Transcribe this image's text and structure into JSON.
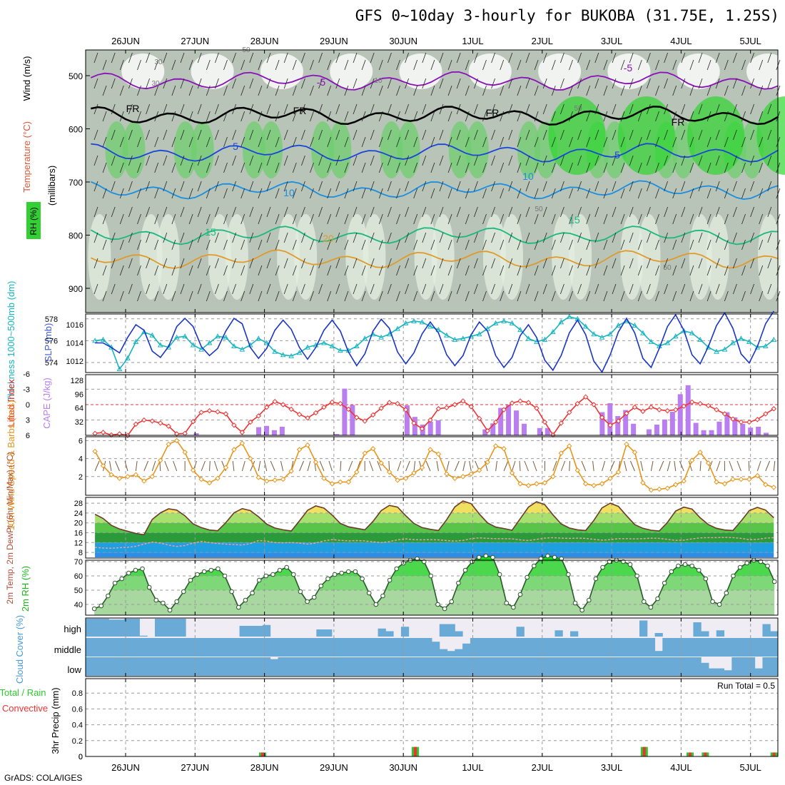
{
  "title": "GFS 0~10day 3-hourly for BUKOBA (31.75E, 1.25S)",
  "footer": "GrADS: COLA/IGES",
  "chart_data": [
    {
      "type": "time-height",
      "dates": [
        "26JUN",
        "27JUN",
        "28JUN",
        "29JUN",
        "30JUN",
        "1JUL",
        "2JUL",
        "3JUL",
        "4JUL",
        "5JUL"
      ],
      "ylabel_lines": [
        "Wind (m/s)",
        "Temperature (°C)",
        "RH (%)",
        "(millibars)"
      ],
      "yticks": [
        500,
        600,
        700,
        800,
        900
      ],
      "isotherm_labels": [
        "-5",
        "-5",
        "FR",
        "FR",
        "FR",
        "FR",
        "5",
        "5",
        "10",
        "10",
        "15",
        "15",
        "20",
        "30",
        "30",
        "50",
        "50",
        "50",
        "50",
        "10"
      ],
      "isotherms_c": [
        -5,
        0,
        5,
        10,
        15,
        20
      ],
      "isotherm_mean_hpa": [
        510,
        575,
        645,
        715,
        800,
        845
      ],
      "rh_bands_pct": [
        30,
        50,
        70,
        90,
        100
      ]
    },
    {
      "type": "line",
      "ylabel_left": "Thickness 1000~500mb (dm)",
      "ylabel_right": "SLP (mb)",
      "y_left_ticks": [
        574,
        576,
        578
      ],
      "y_right_ticks": [
        1012,
        1014,
        1016
      ],
      "series": [
        {
          "name": "SLP (mb)",
          "axis": "right",
          "color": "#1a35c8",
          "values": [
            1014.0,
            1014.0,
            1013.5,
            1012.9,
            1014.6,
            1016.0,
            1015.4,
            1013.1,
            1012.4,
            1013.6,
            1015.8,
            1016.7,
            1015.8,
            1013.6,
            1012.6,
            1013.4,
            1015.3,
            1016.7,
            1016.1,
            1013.5,
            1012.3,
            1013.4,
            1015.4,
            1016.5,
            1015.5,
            1013.5,
            1012.2,
            1013.5,
            1015.4,
            1016.5,
            1015.3,
            1013.0,
            1011.5,
            1012.8,
            1015.3,
            1016.6,
            1015.6,
            1013.0,
            1011.7,
            1012.9,
            1015.0,
            1016.3,
            1015.1,
            1012.7,
            1011.5,
            1012.6,
            1014.9,
            1016.3,
            1015.3,
            1012.6,
            1011.3,
            1012.4,
            1014.8,
            1016.0,
            1014.6,
            1012.1,
            1011.0,
            1012.6,
            1015.1,
            1016.5,
            1014.9,
            1012.0,
            1010.8,
            1012.7,
            1015.2,
            1016.7,
            1015.1,
            1012.3,
            1011.3,
            1013.4,
            1015.8,
            1017.1,
            1015.4,
            1012.7,
            1011.7,
            1013.6,
            1015.9,
            1017.3,
            1015.6,
            1012.8,
            1011.8,
            1013.6,
            1016.1,
            1017.5
          ]
        },
        {
          "name": "Thickness (dm)",
          "axis": "left",
          "color": "#17b5c0",
          "values": [
            576.0,
            576.1,
            575.4,
            573.4,
            574.4,
            575.9,
            576.8,
            576.5,
            575.6,
            575.4,
            576.3,
            576.4,
            575.6,
            575.2,
            575.8,
            576.4,
            576.3,
            575.5,
            575.2,
            575.6,
            576.2,
            575.8,
            575.0,
            574.7,
            574.6,
            574.9,
            575.4,
            575.6,
            575.8,
            575.5,
            575.1,
            575.1,
            575.5,
            576.2,
            576.6,
            576.3,
            576.6,
            577.1,
            577.6,
            577.8,
            577.7,
            577.3,
            577.0,
            576.5,
            576.1,
            576.2,
            576.4,
            576.6,
            577.1,
            577.6,
            577.8,
            577.6,
            577.0,
            576.2,
            575.9,
            576.1,
            576.8,
            577.7,
            578.2,
            578.0,
            577.3,
            576.6,
            576.3,
            576.6,
            577.4,
            577.8,
            577.4,
            576.7,
            575.9,
            575.5,
            575.8,
            576.4,
            576.9,
            576.7,
            576.1,
            575.4,
            575.0,
            575.2,
            575.8,
            576.2,
            575.9,
            575.4,
            575.5,
            576.1
          ]
        }
      ]
    },
    {
      "type": "bar+line",
      "ylabel_left": "Lifted Index",
      "ylabel_right": "CAPE (J/kg)",
      "y_left_ticks": [
        -6,
        -3,
        0,
        3,
        6
      ],
      "y_right_ticks": [
        32,
        64,
        96,
        128
      ],
      "li_values": [
        5.6,
        5.4,
        5.9,
        5.7,
        6.0,
        3.8,
        3.0,
        3.2,
        3.6,
        4.2,
        5.7,
        5.6,
        3.3,
        1.5,
        1.2,
        1.4,
        1.8,
        4.0,
        5.4,
        3.4,
        2.2,
        0.5,
        -0.6,
        0.0,
        0.9,
        1.9,
        2.6,
        1.6,
        0.5,
        -0.5,
        -0.2,
        0.9,
        2.5,
        3.2,
        2.0,
        0.7,
        -0.4,
        -0.2,
        1.0,
        3.6,
        4.7,
        3.0,
        0.8,
        0.6,
        0.0,
        -0.7,
        0.4,
        2.7,
        5.1,
        3.4,
        1.0,
        -0.3,
        -0.7,
        -0.4,
        0.7,
        3.4,
        5.9,
        3.6,
        1.5,
        -0.2,
        -1.5,
        0.0,
        2.5,
        4.0,
        3.2,
        1.7,
        0.5,
        1.3,
        0.5,
        1.0,
        1.2,
        1.0,
        0.3,
        -0.5,
        -0.2,
        0.2,
        1.0,
        1.8,
        2.8,
        3.4,
        3.4,
        2.9,
        1.8,
        0.8
      ],
      "cape_values": [
        0,
        0,
        0,
        0,
        0,
        0,
        0,
        0,
        0,
        0,
        0,
        0,
        0,
        5,
        0,
        0,
        0,
        0,
        0,
        0,
        0,
        19,
        22,
        12,
        20,
        0,
        0,
        0,
        0,
        0,
        0,
        3,
        109,
        71,
        0,
        0,
        0,
        0,
        0,
        0,
        70,
        43,
        25,
        32,
        35,
        0,
        0,
        0,
        0,
        0,
        14,
        28,
        64,
        71,
        58,
        27,
        0,
        17,
        17,
        0,
        0,
        0,
        0,
        0,
        0,
        54,
        75,
        45,
        59,
        27,
        0,
        14,
        25,
        37,
        55,
        96,
        117,
        29,
        12,
        12,
        32,
        54,
        42,
        27,
        18,
        20,
        6,
        0
      ]
    },
    {
      "type": "line",
      "ylabel": "10m Wind Speed & Barbs (m/s)",
      "yticks": [
        2,
        4,
        6
      ],
      "values": [
        4.8,
        3.2,
        2.2,
        1.8,
        2.0,
        2.2,
        1.5,
        2.0,
        3.8,
        5.6,
        6.0,
        4.7,
        2.7,
        1.7,
        1.3,
        1.8,
        3.0,
        5.0,
        5.7,
        4.0,
        1.9,
        1.5,
        1.6,
        1.7,
        2.6,
        5.0,
        5.5,
        3.6,
        1.8,
        1.2,
        1.4,
        1.4,
        2.5,
        4.6,
        5.1,
        3.5,
        2.5,
        1.6,
        1.8,
        2.4,
        3.0,
        5.0,
        4.5,
        2.3,
        1.8,
        2.0,
        2.3,
        2.7,
        3.6,
        5.4,
        5.1,
        2.4,
        1.2,
        1.0,
        1.2,
        1.3,
        2.0,
        4.6,
        5.4,
        2.7,
        1.2,
        1.0,
        1.2,
        1.8,
        2.5,
        5.6,
        4.7,
        1.3,
        0.5,
        0.6,
        0.7,
        1.1,
        1.5,
        3.8,
        4.7,
        3.5,
        1.4,
        1.2,
        1.7,
        1.7,
        1.7,
        2.1,
        1.1,
        0.8
      ]
    },
    {
      "type": "area",
      "ylabel": "2m Temp, 2m DewPt (6hr Min/Max) (°C)",
      "yticks": [
        8,
        12,
        16,
        20,
        24,
        28
      ],
      "temp": [
        23.5,
        21.8,
        19.0,
        17.5,
        16.6,
        15.7,
        15.2,
        21.4,
        24.1,
        25.7,
        25.2,
        22.9,
        19.6,
        18.1,
        17.1,
        16.8,
        20.1,
        24.1,
        25.8,
        25.0,
        22.5,
        19.5,
        17.9,
        17.2,
        16.7,
        20.8,
        25.1,
        26.9,
        26.0,
        23.2,
        19.8,
        18.4,
        17.8,
        17.2,
        20.6,
        25.0,
        27.1,
        26.4,
        22.9,
        19.8,
        18.1,
        17.4,
        16.9,
        21.3,
        26.5,
        28.9,
        27.8,
        23.6,
        20.0,
        18.3,
        17.7,
        17.0,
        21.7,
        26.4,
        28.6,
        27.4,
        23.3,
        19.6,
        17.9,
        17.2,
        16.9,
        21.0,
        26.1,
        28.0,
        26.7,
        22.9,
        19.3,
        17.8,
        17.0,
        16.7,
        20.2,
        24.8,
        26.4,
        25.6,
        22.1,
        19.3,
        17.8,
        17.1,
        16.9,
        20.7,
        25.0,
        26.3,
        25.2,
        22.1
      ],
      "dewpt": [
        10.0,
        9.8,
        9.7,
        9.9,
        10.1,
        10.5,
        11.4,
        12.2,
        11.8,
        11.0,
        10.4,
        10.8,
        11.8,
        12.5,
        12.0,
        11.6,
        11.4,
        11.2,
        11.0,
        11.6,
        12.8,
        12.6,
        12.0,
        11.9,
        12.0,
        11.8,
        11.4,
        11.8,
        12.7,
        13.2,
        12.9,
        12.7,
        12.8,
        12.7,
        12.3,
        12.0,
        12.4,
        13.1,
        13.5,
        13.2,
        13.1,
        13.2,
        13.1,
        12.8,
        12.6,
        12.9,
        13.6,
        13.9,
        13.7,
        13.6,
        13.6,
        13.5,
        13.1,
        12.8,
        13.3,
        13.8,
        14.0,
        13.8,
        13.7,
        13.8,
        13.7,
        13.3,
        13.0,
        13.2,
        13.6,
        13.6,
        13.5,
        13.6,
        13.8,
        13.7,
        13.3,
        12.9,
        13.0,
        13.5,
        13.9,
        14.0,
        14.0,
        14.1,
        14.0,
        13.7,
        13.2,
        13.3,
        13.8,
        14.0
      ]
    },
    {
      "type": "area",
      "ylabel": "2m RH (%)",
      "yticks": [
        40,
        50,
        60,
        70
      ],
      "values": [
        37,
        39,
        46,
        55,
        58,
        62,
        64,
        65,
        52,
        43,
        41,
        36,
        42,
        49,
        57,
        61,
        63,
        64,
        65,
        60,
        49,
        38,
        43,
        48,
        57,
        60,
        61,
        64,
        66,
        61,
        49,
        42,
        45,
        53,
        58,
        61,
        62,
        63,
        63,
        58,
        48,
        40,
        46,
        57,
        65,
        69,
        71,
        72,
        70,
        60,
        40,
        37,
        42,
        55,
        64,
        70,
        73,
        74,
        73,
        61,
        41,
        38,
        47,
        59,
        67,
        72,
        74,
        73,
        72,
        61,
        41,
        36,
        43,
        58,
        66,
        70,
        71,
        70,
        68,
        60,
        42,
        38,
        44,
        55,
        63,
        67,
        68,
        67,
        64,
        58,
        42,
        40,
        48,
        60,
        66,
        69,
        71,
        70,
        67,
        56
      ]
    },
    {
      "type": "heatmap",
      "ylabel": "Cloud Cover (%)",
      "levels": [
        "high",
        "middle",
        "low"
      ],
      "high_pct": [
        100,
        100,
        100,
        95,
        95,
        100,
        100,
        5,
        0,
        100,
        100,
        100,
        100,
        0,
        0,
        0,
        0,
        0,
        0,
        0,
        60,
        60,
        60,
        65,
        0,
        0,
        0,
        0,
        0,
        0,
        40,
        40,
        0,
        0,
        0,
        0,
        0,
        0,
        45,
        30,
        0,
        55,
        0,
        0,
        0,
        0,
        70,
        70,
        30,
        0,
        0,
        0,
        0,
        0,
        0,
        0,
        55,
        0,
        0,
        0,
        0,
        35,
        0,
        30,
        0,
        0,
        0,
        0,
        0,
        0,
        0,
        0,
        90,
        0,
        20,
        0,
        0,
        0,
        0,
        80,
        30,
        0,
        35,
        0,
        0,
        0,
        0,
        0,
        70,
        30
      ],
      "middle_pct": [
        100,
        100,
        100,
        100,
        100,
        100,
        100,
        100,
        100,
        100,
        100,
        100,
        100,
        100,
        100,
        100,
        100,
        100,
        100,
        100,
        100,
        100,
        100,
        100,
        100,
        100,
        100,
        100,
        100,
        100,
        100,
        100,
        100,
        100,
        100,
        100,
        100,
        100,
        100,
        100,
        100,
        100,
        100,
        100,
        100,
        80,
        40,
        30,
        40,
        70,
        100,
        100,
        100,
        100,
        100,
        100,
        100,
        100,
        100,
        100,
        100,
        100,
        100,
        100,
        100,
        100,
        100,
        100,
        100,
        100,
        100,
        100,
        100,
        100,
        30,
        100,
        100,
        100,
        100,
        100,
        100,
        100,
        100,
        100,
        100,
        100,
        100,
        100,
        100,
        100
      ],
      "low_pct": [
        100,
        100,
        100,
        100,
        100,
        100,
        100,
        100,
        100,
        100,
        100,
        100,
        100,
        100,
        100,
        100,
        100,
        100,
        100,
        100,
        100,
        100,
        100,
        100,
        90,
        100,
        100,
        100,
        100,
        100,
        100,
        100,
        100,
        100,
        100,
        100,
        100,
        100,
        100,
        100,
        100,
        100,
        100,
        100,
        100,
        100,
        100,
        100,
        100,
        100,
        100,
        100,
        100,
        100,
        100,
        100,
        100,
        100,
        100,
        100,
        100,
        100,
        100,
        100,
        100,
        100,
        100,
        100,
        100,
        100,
        100,
        100,
        100,
        100,
        100,
        100,
        100,
        100,
        100,
        100,
        70,
        40,
        40,
        30,
        100,
        100,
        100,
        40,
        100,
        100
      ]
    },
    {
      "type": "bar",
      "ylabel": "3hr Precip (mm)",
      "legend": [
        "Total / Rain",
        "Convective"
      ],
      "yticks": [
        0,
        0.2,
        0.4,
        0.6,
        0.8
      ],
      "annotation": "Run Total = 0.5",
      "total_mm": [
        0,
        0,
        0,
        0,
        0,
        0,
        0,
        0,
        0,
        0,
        0,
        0,
        0,
        0,
        0,
        0,
        0,
        0,
        0,
        0,
        0,
        0,
        0.05,
        0,
        0,
        0,
        0,
        0,
        0,
        0,
        0,
        0,
        0,
        0,
        0,
        0,
        0,
        0,
        0,
        0,
        0,
        0,
        0.12,
        0,
        0,
        0,
        0,
        0,
        0,
        0,
        0,
        0,
        0,
        0,
        0,
        0,
        0,
        0,
        0,
        0,
        0,
        0,
        0,
        0,
        0,
        0,
        0,
        0,
        0,
        0,
        0,
        0,
        0.12,
        0,
        0,
        0,
        0,
        0,
        0.05,
        0,
        0.05,
        0,
        0,
        0,
        0,
        0,
        0,
        0,
        0,
        0.05
      ],
      "convective_mm": [
        0,
        0,
        0,
        0,
        0,
        0,
        0,
        0,
        0,
        0,
        0,
        0,
        0,
        0,
        0,
        0,
        0,
        0,
        0,
        0,
        0,
        0,
        0.05,
        0,
        0,
        0,
        0,
        0,
        0,
        0,
        0,
        0,
        0,
        0,
        0,
        0,
        0,
        0,
        0,
        0,
        0,
        0,
        0.12,
        0,
        0,
        0,
        0,
        0,
        0,
        0,
        0,
        0,
        0,
        0,
        0,
        0,
        0,
        0,
        0,
        0,
        0,
        0,
        0,
        0,
        0,
        0,
        0,
        0,
        0,
        0,
        0,
        0,
        0.12,
        0,
        0,
        0,
        0,
        0,
        0.05,
        0,
        0.05,
        0,
        0,
        0,
        0,
        0,
        0,
        0,
        0,
        0.05
      ]
    }
  ]
}
